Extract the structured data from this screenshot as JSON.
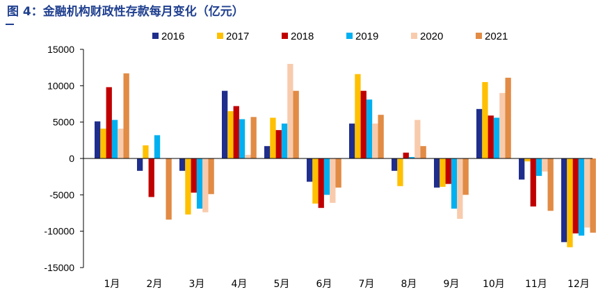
{
  "caption": "图 4：金融机构财政性存款每月变化（亿元）",
  "chart_data": {
    "type": "bar",
    "title": "金融机构财政性存款每月变化（亿元）",
    "xlabel": "",
    "ylabel": "",
    "ylim": [
      -15000,
      15000
    ],
    "yticks": [
      15000,
      10000,
      5000,
      0,
      -5000,
      -10000,
      -15000
    ],
    "ytick_labels": [
      "15000",
      "10000",
      "5000",
      "0",
      "-5000",
      "-10000",
      "-15000"
    ],
    "grid": false,
    "legend_position": "top",
    "categories": [
      "1月",
      "2月",
      "3月",
      "4月",
      "5月",
      "6月",
      "7月",
      "8月",
      "9月",
      "10月",
      "11月",
      "12月"
    ],
    "series": [
      {
        "name": "2016",
        "color": "#1f2e8c",
        "values": [
          5100,
          -1700,
          -1700,
          9300,
          1700,
          -3200,
          4800,
          -1700,
          -4000,
          6800,
          -2900,
          -11500
        ]
      },
      {
        "name": "2017",
        "color": "#ffc000",
        "values": [
          4100,
          1800,
          -7700,
          6500,
          5600,
          -6200,
          11600,
          -3800,
          -3900,
          10500,
          -400,
          -12200
        ]
      },
      {
        "name": "2018",
        "color": "#c00000",
        "values": [
          9800,
          -5300,
          -4700,
          7200,
          3900,
          -6800,
          9300,
          800,
          -3500,
          5900,
          -6600,
          -10300
        ]
      },
      {
        "name": "2019",
        "color": "#00b0f0",
        "values": [
          5300,
          3200,
          -6900,
          5400,
          4800,
          -5000,
          8100,
          200,
          -6900,
          5600,
          -2400,
          -10600
        ]
      },
      {
        "name": "2020",
        "color": "#f8cbad",
        "values": [
          4100,
          0,
          -7400,
          500,
          13000,
          -6100,
          4800,
          5300,
          -8300,
          9000,
          -1800,
          -9500
        ]
      },
      {
        "name": "2021",
        "color": "#e18b45",
        "values": [
          11700,
          -8400,
          -4900,
          5700,
          9300,
          -4000,
          6000,
          1700,
          -5000,
          11100,
          -7200,
          -10200
        ]
      }
    ]
  }
}
